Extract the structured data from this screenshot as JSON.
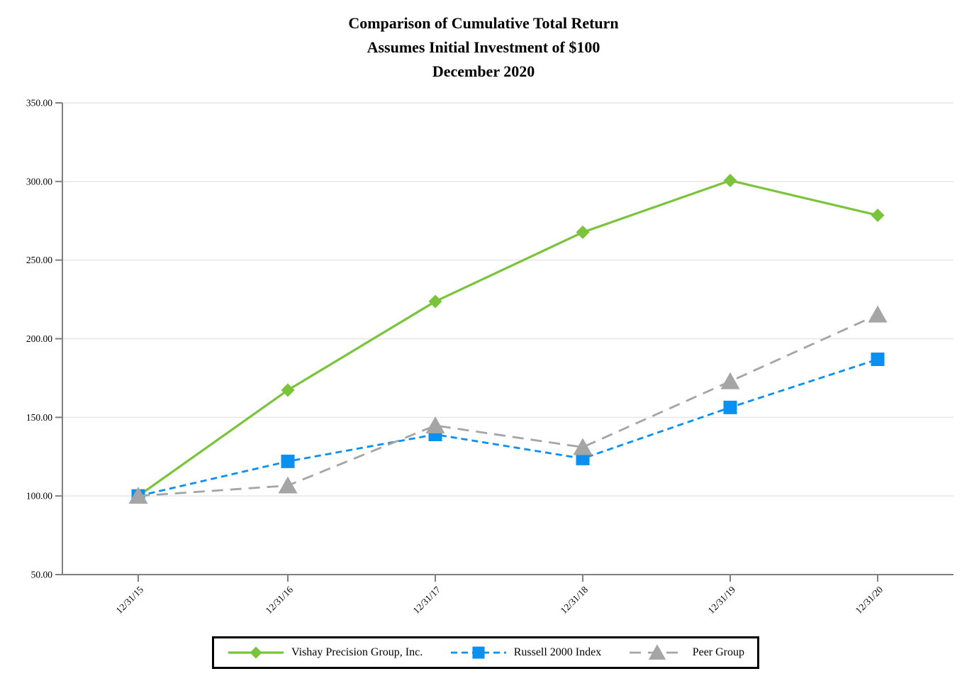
{
  "title": {
    "line1": "Comparison of Cumulative Total Return",
    "line2": "Assumes Initial Investment of $100",
    "line3": "December 2020"
  },
  "chart_data": {
    "type": "line",
    "title": "Comparison of Cumulative Total Return",
    "subtitle": "Assumes Initial Investment of $100",
    "date_label": "December 2020",
    "xlabel": "",
    "ylabel": "",
    "categories": [
      "12/31/15",
      "12/31/16",
      "12/31/17",
      "12/31/18",
      "12/31/19",
      "12/31/20"
    ],
    "series": [
      {
        "name": "Vishay Precision Group, Inc.",
        "values": [
          100.0,
          167.3,
          223.7,
          267.7,
          300.6,
          278.5
        ],
        "color": "#79C43B",
        "marker": "diamond",
        "line_style": "solid"
      },
      {
        "name": "Russell 2000 Index",
        "values": [
          100.0,
          122.0,
          139.1,
          123.8,
          156.3,
          186.9
        ],
        "color": "#0A90F0",
        "marker": "square",
        "line_style": "dashed"
      },
      {
        "name": "Peer Group",
        "values": [
          100.0,
          106.6,
          144.8,
          131.0,
          172.9,
          215.3
        ],
        "color": "#A5A5A5",
        "marker": "triangle",
        "line_style": "long-dash"
      }
    ],
    "ylim": [
      50,
      350
    ],
    "ytick_step": 50,
    "ytick_labels": [
      "50.00",
      "100.00",
      "150.00",
      "200.00",
      "250.00",
      "300.00",
      "350.00"
    ],
    "grid": true,
    "legend_position": "bottom",
    "colors": {
      "axis": "#808080",
      "gridline": "#E6E6E6",
      "tick_text": "#000000",
      "legend_border": "#000000"
    }
  }
}
